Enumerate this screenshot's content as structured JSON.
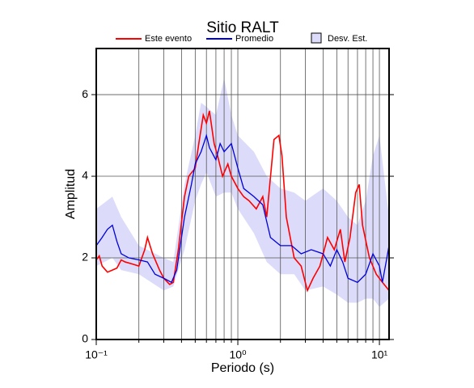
{
  "chart_data": {
    "type": "line",
    "title": "Sitio RALT",
    "x_label": "Periodo (s)",
    "y_label": "Amplitud",
    "xscale": "log",
    "xlim": [
      0.1,
      11.7
    ],
    "ylim": [
      0,
      7.13
    ],
    "xticks": [
      {
        "value": 0.1,
        "label": "10⁻¹"
      },
      {
        "value": 1,
        "label": "10⁰"
      },
      {
        "value": 10,
        "label": "10¹"
      }
    ],
    "xminor": [
      0.2,
      0.3,
      0.4,
      0.5,
      0.6,
      0.7,
      0.8,
      0.9,
      2,
      3,
      4,
      5,
      6,
      7,
      8,
      9
    ],
    "yticks": [
      0,
      2,
      4,
      6
    ],
    "grid": true,
    "legend": "top",
    "series": [
      {
        "name": "Desv. Est.",
        "kind": "band",
        "color": "#dcdcfa",
        "x": [
          0.1,
          0.13,
          0.15,
          0.2,
          0.3,
          0.35,
          0.42,
          0.5,
          0.55,
          0.6,
          0.7,
          0.8,
          0.9,
          1.0,
          1.3,
          1.6,
          2.0,
          2.5,
          3,
          4,
          5,
          6,
          7,
          8,
          9,
          10,
          11.7
        ],
        "upper": [
          3.2,
          3.5,
          3.0,
          2.3,
          2.0,
          1.9,
          3.8,
          5.0,
          5.8,
          5.7,
          5.5,
          6.4,
          5.5,
          5.0,
          4.6,
          4.0,
          3.7,
          3.6,
          3.4,
          3.7,
          3.4,
          3.0,
          2.8,
          3.4,
          4.5,
          5.0,
          3.0
        ],
        "lower": [
          1.8,
          2.0,
          1.7,
          1.6,
          1.2,
          1.3,
          2.2,
          3.4,
          3.8,
          4.1,
          3.5,
          3.6,
          3.6,
          3.2,
          2.6,
          1.9,
          1.6,
          1.6,
          1.2,
          1.3,
          1.1,
          0.9,
          0.9,
          1.0,
          1.0,
          0.8,
          1.0
        ]
      },
      {
        "name": "Este evento",
        "color": "#ff0000",
        "x": [
          0.1,
          0.105,
          0.11,
          0.12,
          0.13,
          0.14,
          0.15,
          0.16,
          0.18,
          0.2,
          0.22,
          0.23,
          0.25,
          0.28,
          0.3,
          0.33,
          0.35,
          0.38,
          0.42,
          0.45,
          0.5,
          0.53,
          0.57,
          0.6,
          0.63,
          0.68,
          0.72,
          0.78,
          0.85,
          0.9,
          1.0,
          1.1,
          1.2,
          1.35,
          1.5,
          1.6,
          1.8,
          1.95,
          2.05,
          2.2,
          2.5,
          2.8,
          3.1,
          3.4,
          3.8,
          4.3,
          4.8,
          5.3,
          5.7,
          6.2,
          6.8,
          7.2,
          7.6,
          8.5,
          9.5,
          10.5,
          11.7
        ],
        "values": [
          1.95,
          2.05,
          1.8,
          1.65,
          1.7,
          1.75,
          1.95,
          1.9,
          1.85,
          1.8,
          2.2,
          2.5,
          2.1,
          1.7,
          1.5,
          1.35,
          1.4,
          2.2,
          3.5,
          4.0,
          4.2,
          4.8,
          5.5,
          5.3,
          5.6,
          4.8,
          4.5,
          4.0,
          4.3,
          4.0,
          3.7,
          3.5,
          3.4,
          3.2,
          3.5,
          3.0,
          4.9,
          5.0,
          4.5,
          3.0,
          2.0,
          1.8,
          1.2,
          1.5,
          1.8,
          2.5,
          2.2,
          2.7,
          1.9,
          2.5,
          3.6,
          3.8,
          2.8,
          2.0,
          1.6,
          1.4,
          1.2
        ]
      },
      {
        "name": "Promedio",
        "color": "#0000dd",
        "x": [
          0.1,
          0.11,
          0.12,
          0.13,
          0.14,
          0.15,
          0.17,
          0.2,
          0.23,
          0.26,
          0.3,
          0.34,
          0.37,
          0.42,
          0.47,
          0.5,
          0.55,
          0.6,
          0.63,
          0.7,
          0.75,
          0.8,
          0.9,
          1.0,
          1.1,
          1.3,
          1.5,
          1.7,
          2.0,
          2.4,
          2.8,
          3.3,
          4.0,
          4.5,
          5.0,
          5.5,
          6.0,
          7.0,
          8.0,
          9.0,
          10,
          10.5,
          11.7
        ],
        "values": [
          2.3,
          2.5,
          2.7,
          2.8,
          2.4,
          2.1,
          2.0,
          1.95,
          1.9,
          1.6,
          1.5,
          1.4,
          1.7,
          3.0,
          3.8,
          4.3,
          4.6,
          5.0,
          4.7,
          4.4,
          4.8,
          4.6,
          4.8,
          4.2,
          3.7,
          3.5,
          3.3,
          2.5,
          2.3,
          2.3,
          2.1,
          2.2,
          2.1,
          1.8,
          2.2,
          1.9,
          1.5,
          1.4,
          1.6,
          2.1,
          1.8,
          1.4,
          2.3
        ]
      }
    ]
  }
}
